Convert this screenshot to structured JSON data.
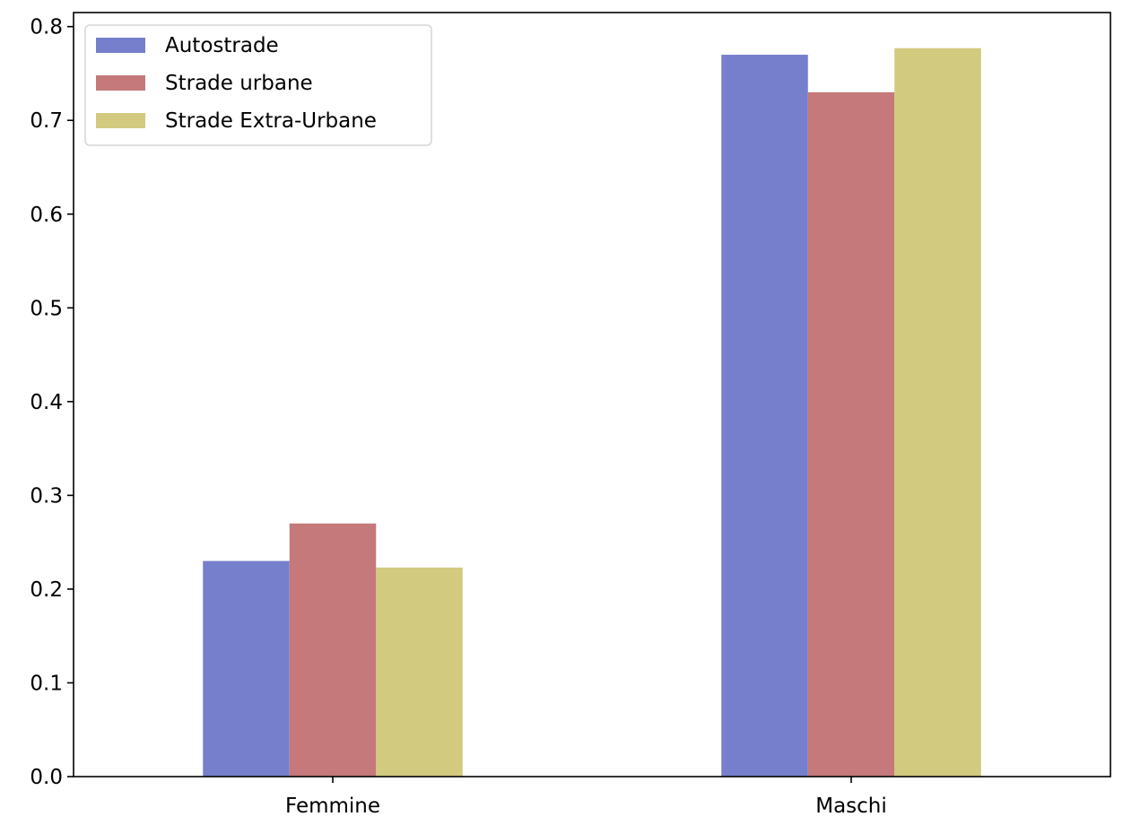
{
  "chart_data": {
    "type": "bar",
    "title": "",
    "xlabel": "",
    "ylabel": "",
    "categories": [
      "Femmine",
      "Maschi"
    ],
    "series": [
      {
        "name": "Autostrade",
        "values": [
          0.23,
          0.77
        ],
        "color": "#757fcb"
      },
      {
        "name": "Strade urbane",
        "values": [
          0.27,
          0.73
        ],
        "color": "#c5797a"
      },
      {
        "name": "Strade Extra-Urbane",
        "values": [
          0.223,
          0.777
        ],
        "color": "#d1ca7f"
      }
    ],
    "ylim": [
      0,
      0.815
    ],
    "yticks": [
      "0.0",
      "0.1",
      "0.2",
      "0.3",
      "0.4",
      "0.5",
      "0.6",
      "0.7",
      "0.8"
    ],
    "grid": false,
    "legend_position": "top-left"
  }
}
